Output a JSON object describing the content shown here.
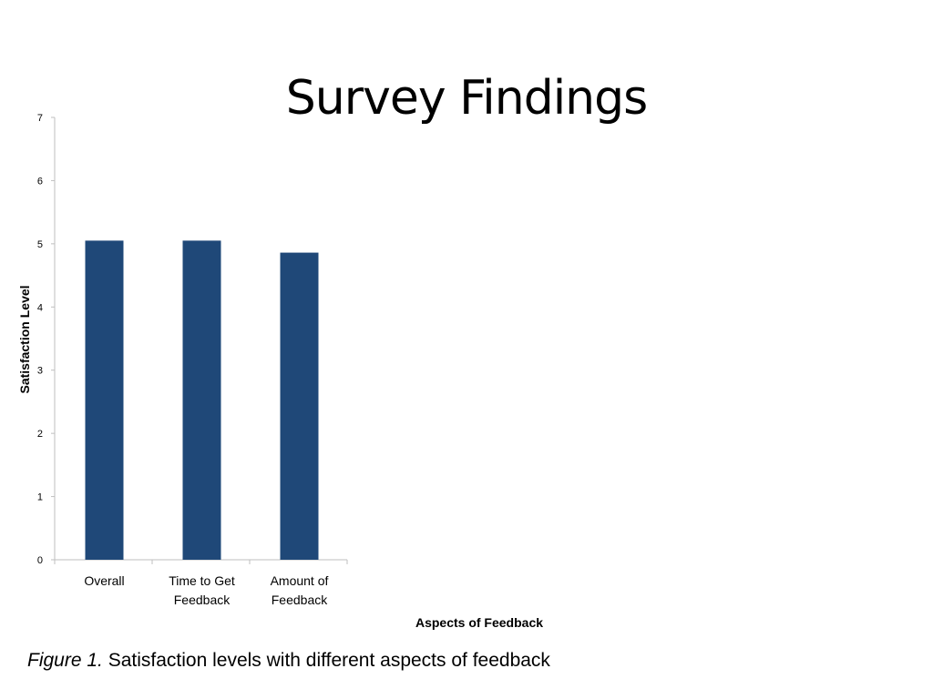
{
  "slide": {
    "title": "Survey Findings",
    "caption_prefix": "Figure 1.",
    "caption_text": " Satisfaction levels with different aspects of feedback"
  },
  "chart_data": {
    "type": "bar",
    "categories": [
      [
        "Overall"
      ],
      [
        "Time to Get",
        "Feedback"
      ],
      [
        "Amount of",
        "Feedback"
      ]
    ],
    "values": [
      5.05,
      5.05,
      4.86
    ],
    "xlabel": "Aspects of Feedback",
    "ylabel": "Satisfaction Level",
    "ylim": [
      0,
      7
    ],
    "yticks": [
      0,
      1,
      2,
      3,
      4,
      5,
      6,
      7
    ],
    "bar_color": "#1f4878",
    "axis_color": "#bfbfbf",
    "grid": false,
    "legend": "none"
  }
}
